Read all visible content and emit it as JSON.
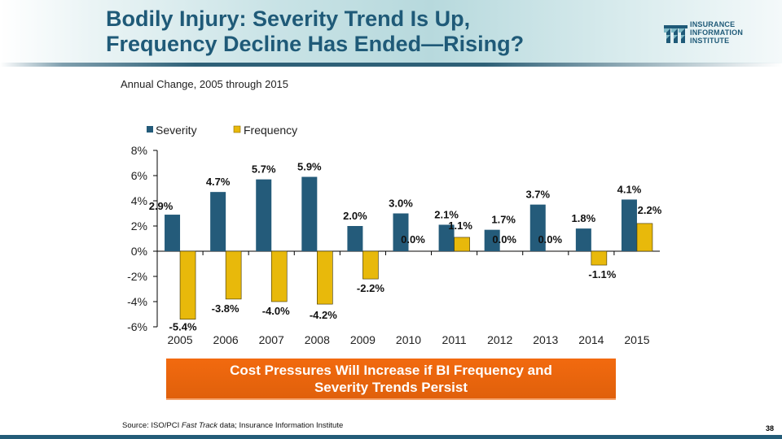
{
  "header": {
    "title_line1": "Bodily Injury: Severity Trend Is Up,",
    "title_line2": "Frequency Decline Has Ended—Rising?",
    "logo": {
      "icon": "iii-logo-icon",
      "line1": "INSURANCE",
      "line2": "INFORMATION",
      "line3": "INSTITUTE"
    }
  },
  "subtitle": "Annual Change, 2005 through 2015",
  "colors": {
    "severity": "#245b7a",
    "frequency": "#e8b90b",
    "title": "#1f5a78",
    "callout_bg": "#ee6610",
    "footer_bar": "#235c78"
  },
  "chart_data": {
    "type": "bar",
    "title": "Annual Change, 2005 through 2015",
    "xlabel": "",
    "ylabel": "",
    "categories": [
      "2005",
      "2006",
      "2007",
      "2008",
      "2009",
      "2010",
      "2011",
      "2012",
      "2013",
      "2014",
      "2015"
    ],
    "series": [
      {
        "name": "Severity",
        "values": [
          2.9,
          4.7,
          5.7,
          5.9,
          2.0,
          3.0,
          2.1,
          1.7,
          3.7,
          1.8,
          4.1
        ],
        "labels": [
          "2.9%",
          "4.7%",
          "5.7%",
          "5.9%",
          "2.0%",
          "3.0%",
          "2.1%",
          "1.7%",
          "3.7%",
          "1.8%",
          "4.1%"
        ]
      },
      {
        "name": "Frequency",
        "values": [
          -5.4,
          -3.8,
          -4.0,
          -4.2,
          -2.2,
          0.0,
          1.1,
          0.0,
          0.0,
          -1.1,
          2.2
        ],
        "labels": [
          "-5.4%",
          "-3.8%",
          "-4.0%",
          "-4.2%",
          "-2.2%",
          "0.0%",
          "1.1%",
          "0.0%",
          "0.0%",
          "-1.1%",
          "2.2%"
        ]
      }
    ],
    "ylim": [
      -6,
      8
    ],
    "yticks": [
      -6,
      -4,
      -2,
      0,
      2,
      4,
      6,
      8
    ],
    "ytick_labels": [
      "-6%",
      "-4%",
      "-2%",
      "0%",
      "2%",
      "4%",
      "6%",
      "8%"
    ],
    "legend": {
      "position": "top-left",
      "entries": [
        "Severity",
        "Frequency"
      ]
    },
    "grid": false
  },
  "callout": {
    "line1": "Cost Pressures Will Increase if BI Frequency and",
    "line2": "Severity Trends Persist"
  },
  "footer": {
    "source_prefix": "Source: ISO/PCI ",
    "source_italic": "Fast Track",
    "source_suffix": " data; Insurance Information Institute",
    "page_number": "38"
  }
}
